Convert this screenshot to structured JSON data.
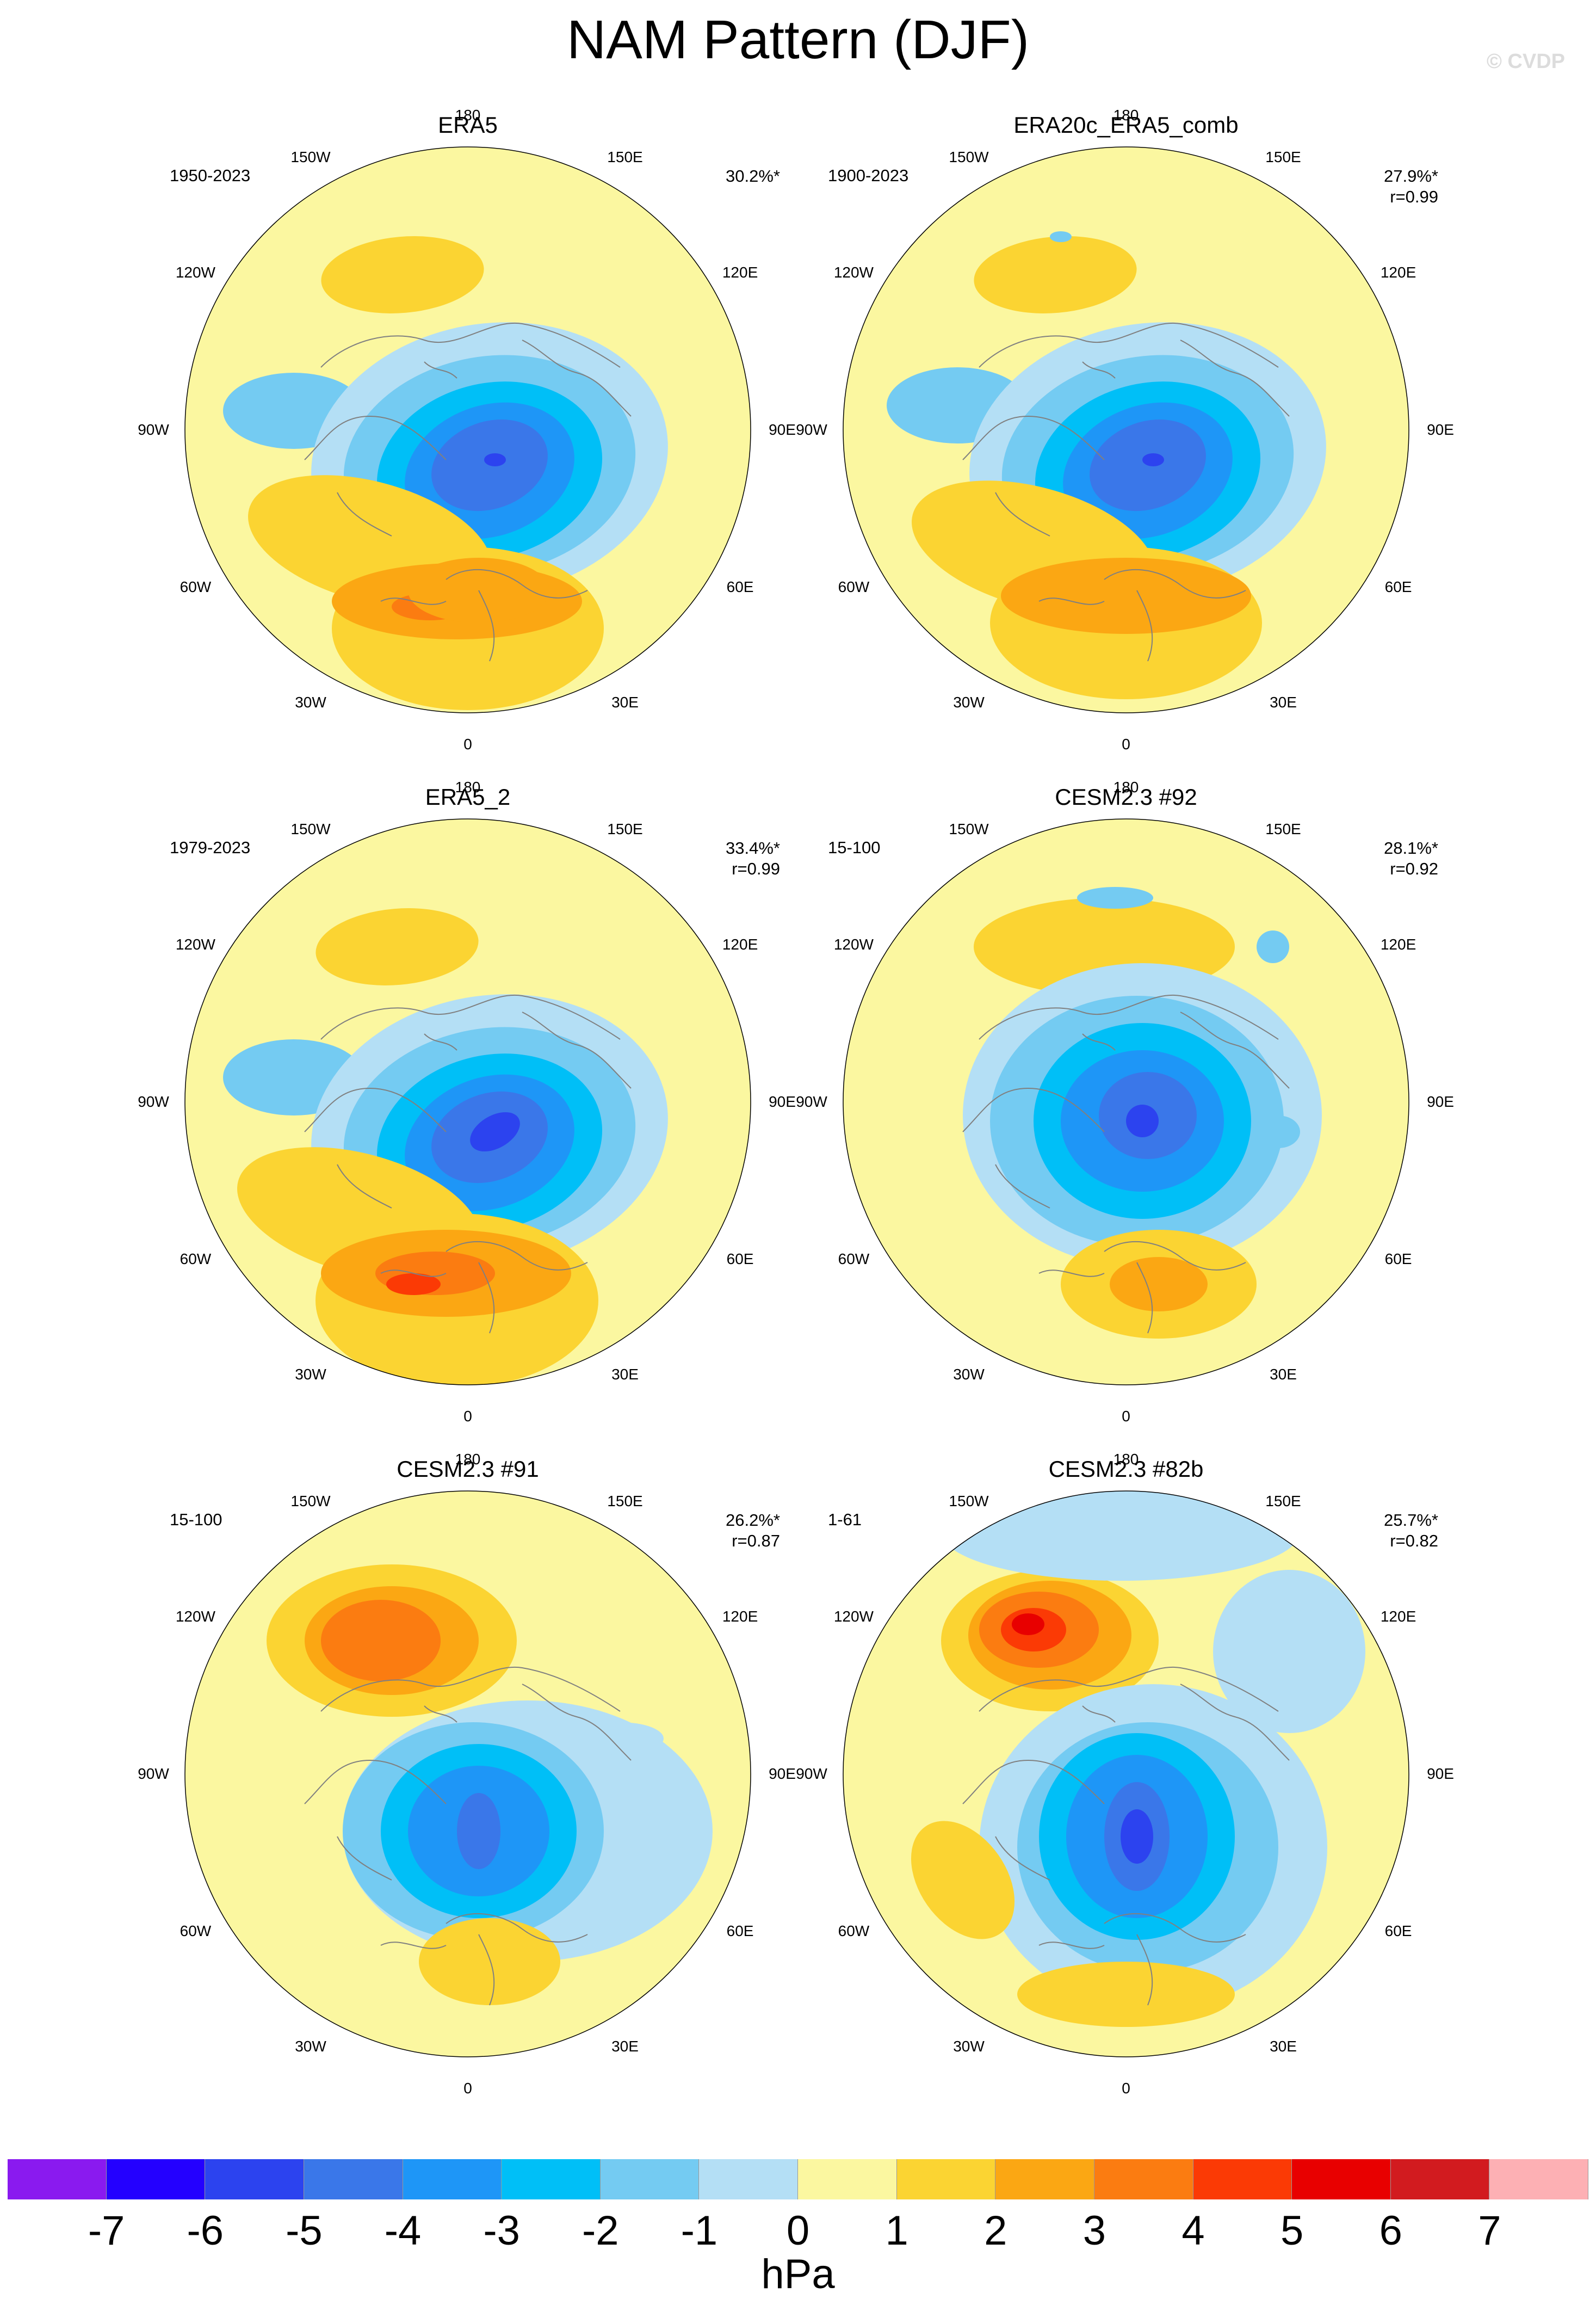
{
  "title": "NAM Pattern (DJF)",
  "copyright": "© CVDP",
  "panels": [
    {
      "title": "ERA5",
      "period": "1950-2023",
      "stat": [
        "30.2%*"
      ]
    },
    {
      "title": "ERA20c_ERA5_comb",
      "period": "1900-2023",
      "stat": [
        "27.9%*",
        "r=0.99"
      ]
    },
    {
      "title": "ERA5_2",
      "period": "1979-2023",
      "stat": [
        "33.4%*",
        "r=0.99"
      ]
    },
    {
      "title": "CESM2.3 #92",
      "period": "15-100",
      "stat": [
        "28.1%*",
        "r=0.92"
      ]
    },
    {
      "title": "CESM2.3 #91",
      "period": "15-100",
      "stat": [
        "26.2%*",
        "r=0.87"
      ]
    },
    {
      "title": "CESM2.3 #82b",
      "period": "1-61",
      "stat": [
        "25.7%*",
        "r=0.82"
      ]
    }
  ],
  "longitude_labels": [
    "180",
    "150E",
    "120E",
    "90E",
    "60E",
    "30E",
    "0",
    "30W",
    "60W",
    "90W",
    "120W",
    "150W"
  ],
  "colorbar": {
    "units": "hPa",
    "labels": [
      "-7",
      "-6",
      "-5",
      "-4",
      "-3",
      "-2",
      "-1",
      "0",
      "1",
      "2",
      "3",
      "4",
      "5",
      "6",
      "7"
    ],
    "colors": [
      "#8a1aef",
      "#2400ff",
      "#2c43ef",
      "#3a77e9",
      "#1e96f7",
      "#00bff7",
      "#74cbf2",
      "#b4dff5",
      "#fbf7a0",
      "#fbd432",
      "#fba713",
      "#fb7c11",
      "#fb3a05",
      "#e80000",
      "#d21b1f",
      "#fdb0b4"
    ]
  },
  "map_style": {
    "background": "#fbf7a0",
    "coast_color": "#808080"
  }
}
